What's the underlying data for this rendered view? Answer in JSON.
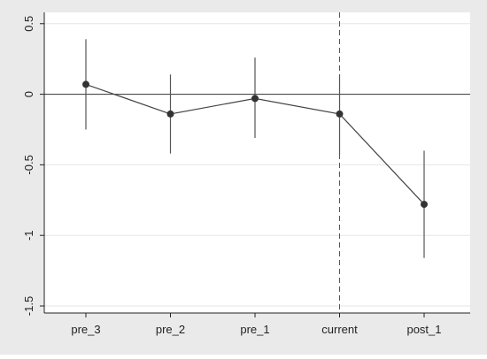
{
  "chart_data": {
    "type": "scatter",
    "categories": [
      "pre_3",
      "pre_2",
      "pre_1",
      "current",
      "post_1"
    ],
    "series": [
      {
        "values": [
          0.07,
          -0.14,
          -0.03,
          -0.14,
          -0.78
        ],
        "ci_lower": [
          -0.25,
          -0.42,
          -0.31,
          -0.43,
          -1.16
        ],
        "ci_upper": [
          0.39,
          0.14,
          0.26,
          0.14,
          -0.4
        ],
        "color": "#333333",
        "connected": true
      }
    ],
    "y_ticks": [
      "0.5",
      "0",
      "-0.5",
      "-1",
      "-1.5"
    ],
    "y_tick_values": [
      0.5,
      0,
      -0.5,
      -1,
      -1.5
    ],
    "ylim": [
      -1.55,
      0.58
    ],
    "reference_line_y": 0,
    "vertical_dashed_at": "current",
    "grid": true,
    "colors": {
      "outer_background": "#eaeaea",
      "plot_background": "#ffffff",
      "grid": "#e6e6e6",
      "marker": "#333333",
      "axis": "#222222"
    }
  }
}
